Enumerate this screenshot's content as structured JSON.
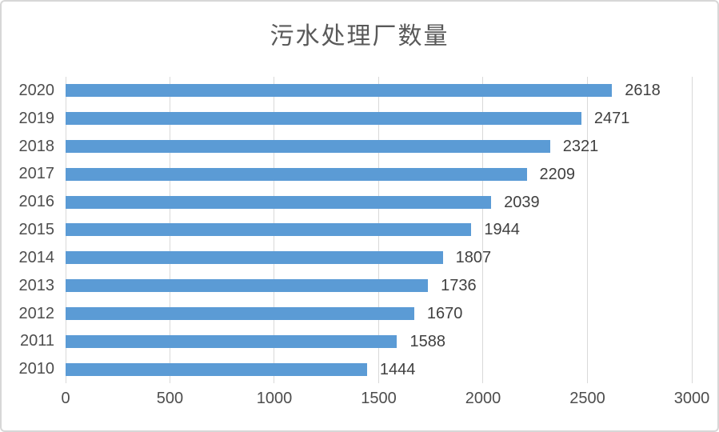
{
  "chart_data": {
    "type": "bar",
    "orientation": "horizontal",
    "title": "污水处理厂数量",
    "categories": [
      "2020",
      "2019",
      "2018",
      "2017",
      "2016",
      "2015",
      "2014",
      "2013",
      "2012",
      "2011",
      "2010"
    ],
    "values": [
      2618,
      2471,
      2321,
      2209,
      2039,
      1944,
      1807,
      1736,
      1670,
      1588,
      1444
    ],
    "data_labels": [
      "2618",
      "2471",
      "2321",
      "2209",
      "2039",
      "1944",
      "1807",
      "1736",
      "1670",
      "1588",
      "1444"
    ],
    "xlabel": "",
    "ylabel": "",
    "xlim": [
      0,
      3000
    ],
    "x_ticks": [
      0,
      500,
      1000,
      1500,
      2000,
      2500,
      3000
    ],
    "x_tick_labels": [
      "0",
      "500",
      "1000",
      "1500",
      "2000",
      "2500",
      "3000"
    ],
    "grid": "vertical-only",
    "legend": "none",
    "colors": {
      "bar": "#5b9bd5",
      "gridline": "#d9d9d9",
      "title_text": "#595959",
      "axis_text": "#4d4d4d",
      "value_text": "#404040",
      "background": "#ffffff",
      "frame_border": "#d7d7d7"
    }
  }
}
